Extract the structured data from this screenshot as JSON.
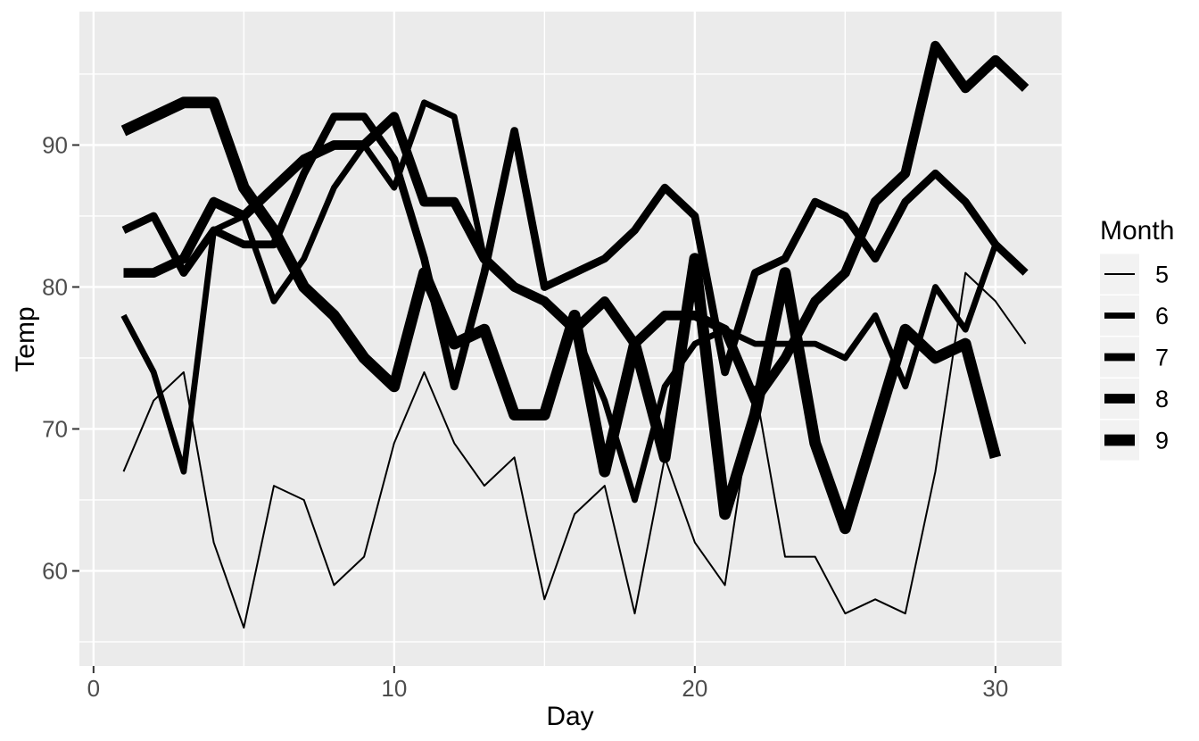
{
  "chart_data": {
    "type": "line",
    "title": "",
    "xlabel": "Day",
    "ylabel": "Temp",
    "legend_title": "Month",
    "legend_position": "right",
    "legend_entries": [
      "5",
      "6",
      "7",
      "8",
      "9"
    ],
    "x_axis": {
      "ticks": [
        0,
        10,
        20,
        30
      ],
      "minor_ticks": [
        5,
        15,
        25
      ],
      "lim": [
        -0.47,
        32.2
      ]
    },
    "y_axis": {
      "ticks": [
        60,
        70,
        80,
        90
      ],
      "minor_ticks": [
        55,
        65,
        75,
        85,
        95
      ],
      "lim": [
        53.3,
        99.4
      ]
    },
    "grid": "white major and minor gridlines on gray panel",
    "size_encoding": "line thickness increases with Month",
    "series": [
      {
        "name": "5",
        "stroke_px": 2,
        "days": [
          1,
          2,
          3,
          4,
          5,
          6,
          7,
          8,
          9,
          10,
          11,
          12,
          13,
          14,
          15,
          16,
          17,
          18,
          19,
          20,
          21,
          22,
          23,
          24,
          25,
          26,
          27,
          28,
          29,
          30,
          31
        ],
        "temps": [
          67,
          72,
          74,
          62,
          56,
          66,
          65,
          59,
          61,
          69,
          74,
          69,
          66,
          68,
          58,
          64,
          66,
          57,
          68,
          62,
          59,
          73,
          61,
          61,
          57,
          58,
          57,
          67,
          81,
          79,
          76
        ]
      },
      {
        "name": "6",
        "stroke_px": 6.8,
        "days": [
          1,
          2,
          3,
          4,
          5,
          6,
          7,
          8,
          9,
          10,
          11,
          12,
          13,
          14,
          15,
          16,
          17,
          18,
          19,
          20,
          21,
          22,
          23,
          24,
          25,
          26,
          27,
          28,
          29,
          30
        ],
        "temps": [
          78,
          74,
          67,
          84,
          85,
          79,
          82,
          87,
          90,
          87,
          93,
          92,
          82,
          80,
          79,
          77,
          72,
          65,
          73,
          76,
          77,
          76,
          76,
          76,
          75,
          78,
          73,
          80,
          77,
          83
        ]
      },
      {
        "name": "7",
        "stroke_px": 8.8,
        "days": [
          1,
          2,
          3,
          4,
          5,
          6,
          7,
          8,
          9,
          10,
          11,
          12,
          13,
          14,
          15,
          16,
          17,
          18,
          19,
          20,
          21,
          22,
          23,
          24,
          25,
          26,
          27,
          28,
          29,
          30,
          31
        ],
        "temps": [
          84,
          85,
          81,
          84,
          83,
          83,
          88,
          92,
          92,
          89,
          82,
          73,
          81,
          91,
          80,
          81,
          82,
          84,
          87,
          85,
          74,
          81,
          82,
          86,
          85,
          82,
          86,
          88,
          86,
          83,
          81
        ]
      },
      {
        "name": "8",
        "stroke_px": 10.8,
        "days": [
          1,
          2,
          3,
          4,
          5,
          6,
          7,
          8,
          9,
          10,
          11,
          12,
          13,
          14,
          15,
          16,
          17,
          18,
          19,
          20,
          21,
          22,
          23,
          24,
          25,
          26,
          27,
          28,
          29,
          30,
          31
        ],
        "temps": [
          81,
          81,
          82,
          86,
          85,
          87,
          89,
          90,
          90,
          92,
          86,
          86,
          82,
          80,
          79,
          77,
          79,
          76,
          78,
          78,
          77,
          72,
          75,
          79,
          81,
          86,
          88,
          97,
          94,
          96,
          94
        ]
      },
      {
        "name": "9",
        "stroke_px": 12.8,
        "days": [
          1,
          2,
          3,
          4,
          5,
          6,
          7,
          8,
          9,
          10,
          11,
          12,
          13,
          14,
          15,
          16,
          17,
          18,
          19,
          20,
          21,
          22,
          23,
          24,
          25,
          26,
          27,
          28,
          29,
          30
        ],
        "temps": [
          91,
          92,
          93,
          93,
          87,
          84,
          80,
          78,
          75,
          73,
          81,
          76,
          77,
          71,
          71,
          78,
          67,
          76,
          68,
          82,
          64,
          71,
          81,
          69,
          63,
          70,
          77,
          75,
          76,
          68
        ]
      }
    ]
  },
  "colors": {
    "line": "#000000",
    "panel_bg": "#EBEBEB",
    "grid": "#FFFFFF",
    "tick_text": "#4D4D4D",
    "axis_title_text": "#000000",
    "tick_mark": "#333333",
    "legend_key_bg": "#F2F2F2",
    "background": "#FFFFFF"
  }
}
